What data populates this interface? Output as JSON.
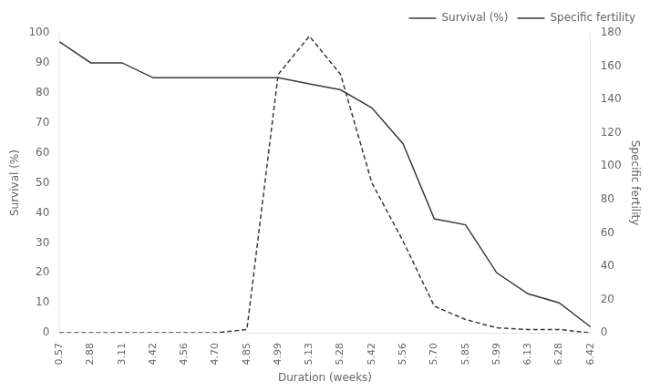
{
  "chart_data": {
    "type": "line",
    "xlabel": "Duration (weeks)",
    "ylabel": "Survival (%)",
    "y2label": "Specific fertility",
    "categories": [
      "0.57",
      "2.88",
      "3.11",
      "4.42",
      "4.56",
      "4.70",
      "4.85",
      "4.99",
      "5.13",
      "5.28",
      "5.42",
      "5.56",
      "5.70",
      "5.85",
      "5.99",
      "6.13",
      "6.28",
      "6.42"
    ],
    "series": [
      {
        "name": "Survival (%)",
        "color": "#3a3a3a",
        "line_style": "solid",
        "values": [
          97,
          90,
          90,
          85,
          85,
          85,
          85,
          85,
          83,
          81,
          75,
          63,
          38,
          36,
          20,
          13,
          10,
          2
        ]
      },
      {
        "name": "Specific fertility",
        "color": "#3a3a3a",
        "line_style": "dashed",
        "axis": "y2",
        "values": [
          0,
          0,
          0,
          0,
          0,
          0,
          2,
          155,
          178,
          155,
          90,
          55,
          16,
          8,
          3,
          2,
          2,
          0
        ]
      }
    ],
    "ylim": [
      0,
      100
    ],
    "yticks": [
      0,
      10,
      20,
      30,
      40,
      50,
      60,
      70,
      80,
      90,
      100
    ],
    "y2lim": [
      0,
      180
    ],
    "y2ticks": [
      0,
      20,
      40,
      60,
      80,
      100,
      120,
      140,
      160,
      180
    ],
    "grid": false,
    "legend": "upper right"
  }
}
